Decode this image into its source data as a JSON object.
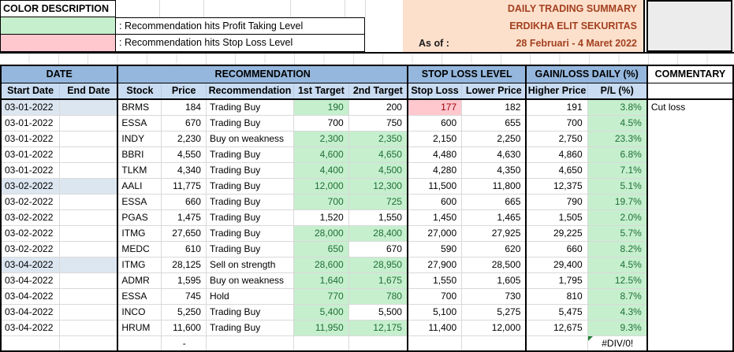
{
  "legend": {
    "title": "COLOR DESCRIPTION",
    "items": [
      {
        "swatch": "profit-taking-green",
        "color": "#C6EFCE",
        "label": ": Recommendation hits Profit Taking Level"
      },
      {
        "swatch": "stop-loss-pink",
        "color": "#FFC7CE",
        "label": ": Recommendation hits Stop Loss Level"
      }
    ]
  },
  "title_block": {
    "line1": "DAILY TRADING SUMMARY",
    "line2": "ERDIKHA ELIT SEKURITAS",
    "as_of_label": "As of :",
    "date_range": "28 Februari - 4 Maret 2022"
  },
  "colors": {
    "profit_green_bg": "#C6EFCE",
    "profit_green_text": "#1F6F35",
    "stop_loss_pink_bg": "#FFC7CE",
    "stop_loss_pink_text": "#9C0006",
    "group_header_blue": "#95B7DD",
    "sub_header_blue": "#C9DCF1",
    "date_highlight_blue": "#DCE6F1",
    "title_bg_peach": "#FCE0CC",
    "title_text_maroon": "#A3401F",
    "error_indicator_green": "#1E7B34"
  },
  "table": {
    "groups": {
      "date": "DATE",
      "recommendation": "RECOMMENDATION",
      "stop_loss": "STOP LOSS LEVEL",
      "gain_loss": "GAIN/LOSS DAILY (%)",
      "commentary": "COMMENTARY"
    },
    "columns": {
      "start_date": "Start Date",
      "end_date": "End Date",
      "stock": "Stock",
      "price": "Price",
      "recommendation": "Recommendation",
      "first_target": "1st Target",
      "second_target": "2nd Target",
      "stop_loss": "Stop Loss",
      "lower_price": "Lower Price",
      "higher_price": "Higher Price",
      "pl_pct": "P/L (%)"
    },
    "rows": [
      {
        "sd": "03-01-2022",
        "ed": "",
        "stock": "BRMS",
        "price": "184",
        "rec": "Trading Buy",
        "t1": "190",
        "t2": "200",
        "sl": "177",
        "lp": "182",
        "hp": "191",
        "pl": "3.8%",
        "comment": "Cut loss",
        "hl": {
          "date": true,
          "t1": "g",
          "sl": "p",
          "pl": "g"
        }
      },
      {
        "sd": "03-01-2022",
        "ed": "",
        "stock": "ESSA",
        "price": "670",
        "rec": "Trading Buy",
        "t1": "700",
        "t2": "750",
        "sl": "600",
        "lp": "655",
        "hp": "700",
        "pl": "4.5%",
        "comment": "",
        "hl": {
          "pl": "g"
        }
      },
      {
        "sd": "03-01-2022",
        "ed": "",
        "stock": "INDY",
        "price": "2,230",
        "rec": "Buy on weakness",
        "t1": "2,300",
        "t2": "2,350",
        "sl": "2,150",
        "lp": "2,250",
        "hp": "2,750",
        "pl": "23.3%",
        "comment": "",
        "hl": {
          "t1": "g",
          "t2": "g",
          "pl": "g"
        }
      },
      {
        "sd": "03-01-2022",
        "ed": "",
        "stock": "BBRI",
        "price": "4,550",
        "rec": "Trading Buy",
        "t1": "4,600",
        "t2": "4,650",
        "sl": "4,480",
        "lp": "4,630",
        "hp": "4,860",
        "pl": "6.8%",
        "comment": "",
        "hl": {
          "t1": "g",
          "t2": "g",
          "pl": "g"
        }
      },
      {
        "sd": "03-01-2022",
        "ed": "",
        "stock": "TLKM",
        "price": "4,340",
        "rec": "Trading Buy",
        "t1": "4,400",
        "t2": "4,500",
        "sl": "4,280",
        "lp": "4,350",
        "hp": "4,650",
        "pl": "7.1%",
        "comment": "",
        "hl": {
          "t1": "g",
          "t2": "g",
          "pl": "g"
        }
      },
      {
        "sd": "03-02-2022",
        "ed": "",
        "stock": "AALI",
        "price": "11,775",
        "rec": "Trading Buy",
        "t1": "12,000",
        "t2": "12,300",
        "sl": "11,500",
        "lp": "11,800",
        "hp": "12,375",
        "pl": "5.1%",
        "comment": "",
        "hl": {
          "date": true,
          "t1": "g",
          "t2": "g",
          "pl": "g"
        }
      },
      {
        "sd": "03-02-2022",
        "ed": "",
        "stock": "ESSA",
        "price": "660",
        "rec": "Trading Buy",
        "t1": "700",
        "t2": "725",
        "sl": "600",
        "lp": "665",
        "hp": "790",
        "pl": "19.7%",
        "comment": "",
        "hl": {
          "t1": "g",
          "t2": "g",
          "pl": "g"
        }
      },
      {
        "sd": "03-02-2022",
        "ed": "",
        "stock": "PGAS",
        "price": "1,475",
        "rec": "Trading Buy",
        "t1": "1,520",
        "t2": "1,550",
        "sl": "1,450",
        "lp": "1,465",
        "hp": "1,505",
        "pl": "2.0%",
        "comment": "",
        "hl": {
          "pl": "g"
        }
      },
      {
        "sd": "03-02-2022",
        "ed": "",
        "stock": "ITMG",
        "price": "27,650",
        "rec": "Trading Buy",
        "t1": "28,000",
        "t2": "28,400",
        "sl": "27,000",
        "lp": "27,925",
        "hp": "29,225",
        "pl": "5.7%",
        "comment": "",
        "hl": {
          "t1": "g",
          "t2": "g",
          "pl": "g"
        }
      },
      {
        "sd": "03-02-2022",
        "ed": "",
        "stock": "MEDC",
        "price": "610",
        "rec": "Trading Buy",
        "t1": "650",
        "t2": "670",
        "sl": "590",
        "lp": "620",
        "hp": "660",
        "pl": "8.2%",
        "comment": "",
        "hl": {
          "t1": "g",
          "pl": "g"
        }
      },
      {
        "sd": "03-04-2022",
        "ed": "",
        "stock": "ITMG",
        "price": "28,125",
        "rec": "Sell on strength",
        "t1": "28,600",
        "t2": "28,950",
        "sl": "27,900",
        "lp": "28,500",
        "hp": "29,400",
        "pl": "4.5%",
        "comment": "",
        "hl": {
          "date": true,
          "t1": "g",
          "t2": "g",
          "pl": "g"
        }
      },
      {
        "sd": "03-04-2022",
        "ed": "",
        "stock": "ADMR",
        "price": "1,595",
        "rec": "Buy on weakness",
        "t1": "1,640",
        "t2": "1,675",
        "sl": "1,550",
        "lp": "1,605",
        "hp": "1,795",
        "pl": "12.5%",
        "comment": "",
        "hl": {
          "t1": "g",
          "t2": "g",
          "pl": "g"
        }
      },
      {
        "sd": "03-04-2022",
        "ed": "",
        "stock": "ESSA",
        "price": "745",
        "rec": "Hold",
        "t1": "770",
        "t2": "780",
        "sl": "700",
        "lp": "730",
        "hp": "810",
        "pl": "8.7%",
        "comment": "",
        "hl": {
          "t1": "g",
          "t2": "g",
          "pl": "g"
        }
      },
      {
        "sd": "03-04-2022",
        "ed": "",
        "stock": "INCO",
        "price": "5,250",
        "rec": "Trading Buy",
        "t1": "5,400",
        "t2": "5,500",
        "sl": "5,100",
        "lp": "5,275",
        "hp": "5,475",
        "pl": "4.3%",
        "comment": "",
        "hl": {
          "t1": "g",
          "pl": "g"
        }
      },
      {
        "sd": "03-04-2022",
        "ed": "",
        "stock": "HRUM",
        "price": "11,600",
        "rec": "Trading Buy",
        "t1": "11,950",
        "t2": "12,175",
        "sl": "11,400",
        "lp": "12,000",
        "hp": "12,675",
        "pl": "9.3%",
        "comment": "",
        "hl": {
          "t1": "g",
          "t2": "g",
          "pl": "g"
        }
      },
      {
        "sd": "",
        "ed": "",
        "stock": "",
        "price": "-",
        "rec": "",
        "t1": "",
        "t2": "",
        "sl": "",
        "lp": "",
        "hp": "",
        "pl": "#DIV/0!",
        "comment": "",
        "hl": {
          "pl": "err"
        }
      }
    ]
  }
}
